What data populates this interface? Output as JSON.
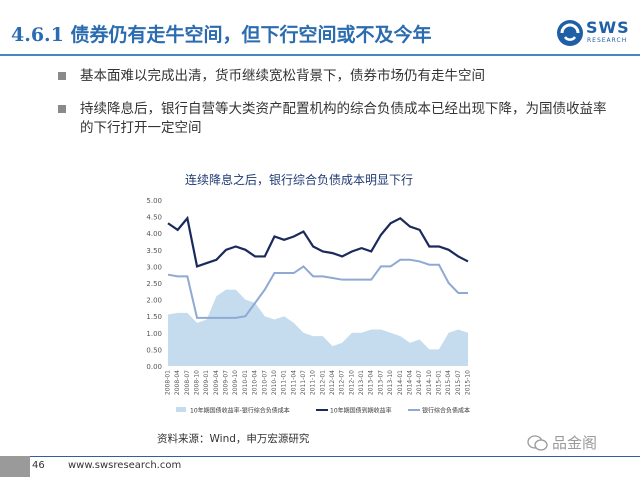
{
  "header": {
    "title": "4.6.1 债券仍有走牛空间，但下行空间或不及今年",
    "logo_text": "SWS",
    "logo_sub": "RESEARCH"
  },
  "bullets": [
    "基本面难以完成出清，货币继续宽松背景下，债券市场仍有走牛空间",
    "持续降息后，银行自营等大类资产配置机构的综合负债成本已经出现下降，为国债收益率的下行打开一定空间"
  ],
  "chart_data": {
    "type": "area+line",
    "title": "连续降息之后，银行综合负债成本明显下行",
    "ylim": [
      0,
      5
    ],
    "yticks": [
      "0.00",
      "0.50",
      "1.00",
      "1.50",
      "2.00",
      "2.50",
      "3.00",
      "3.50",
      "4.00",
      "4.50",
      "5.00"
    ],
    "categories": [
      "2008-01",
      "2008-04",
      "2008-07",
      "2008-10",
      "2009-01",
      "2009-04",
      "2009-07",
      "2009-10",
      "2010-01",
      "2010-04",
      "2010-07",
      "2010-10",
      "2011-01",
      "2011-04",
      "2011-07",
      "2011-10",
      "2012-01",
      "2012-04",
      "2012-07",
      "2012-10",
      "2013-01",
      "2013-04",
      "2013-07",
      "2013-10",
      "2014-01",
      "2014-04",
      "2014-07",
      "2014-10",
      "2015-01",
      "2015-04",
      "2015-07",
      "2015-10"
    ],
    "series": [
      {
        "name": "10年期国债收益率-银行综合负债成本",
        "type": "area",
        "color": "#c5dcef",
        "values": [
          1.55,
          1.6,
          1.6,
          1.3,
          1.4,
          2.1,
          2.3,
          2.3,
          2.0,
          1.9,
          1.5,
          1.4,
          1.5,
          1.3,
          1.0,
          0.9,
          0.9,
          0.6,
          0.7,
          1.0,
          1.0,
          1.1,
          1.1,
          1.0,
          0.9,
          0.7,
          0.8,
          0.5,
          0.5,
          1.0,
          1.1,
          1.0
        ]
      },
      {
        "name": "10年期国债到期收益率",
        "type": "line",
        "color": "#1a2a5c",
        "values": [
          4.3,
          4.1,
          4.45,
          3.0,
          3.1,
          3.2,
          3.5,
          3.6,
          3.5,
          3.3,
          3.3,
          3.9,
          3.8,
          3.9,
          4.05,
          3.6,
          3.45,
          3.4,
          3.3,
          3.45,
          3.55,
          3.45,
          3.95,
          4.3,
          4.45,
          4.2,
          4.1,
          3.6,
          3.6,
          3.5,
          3.3,
          3.15
        ]
      },
      {
        "name": "银行综合负债成本",
        "type": "line",
        "color": "#8fa9d4",
        "values": [
          2.75,
          2.7,
          2.7,
          1.45,
          1.45,
          1.45,
          1.45,
          1.45,
          1.5,
          1.9,
          2.3,
          2.8,
          2.8,
          2.8,
          3.0,
          2.7,
          2.7,
          2.65,
          2.6,
          2.6,
          2.6,
          2.6,
          3.0,
          3.0,
          3.2,
          3.2,
          3.15,
          3.05,
          3.05,
          2.5,
          2.2,
          2.2
        ]
      }
    ],
    "legend_position": "bottom"
  },
  "source": "资料来源：Wind，申万宏源研究",
  "footer": {
    "page": "46",
    "website": "www.swsresearch.com"
  },
  "watermark": "品金阁",
  "colors": {
    "title": "#2b6cb0",
    "rule": "#4a86c5"
  }
}
